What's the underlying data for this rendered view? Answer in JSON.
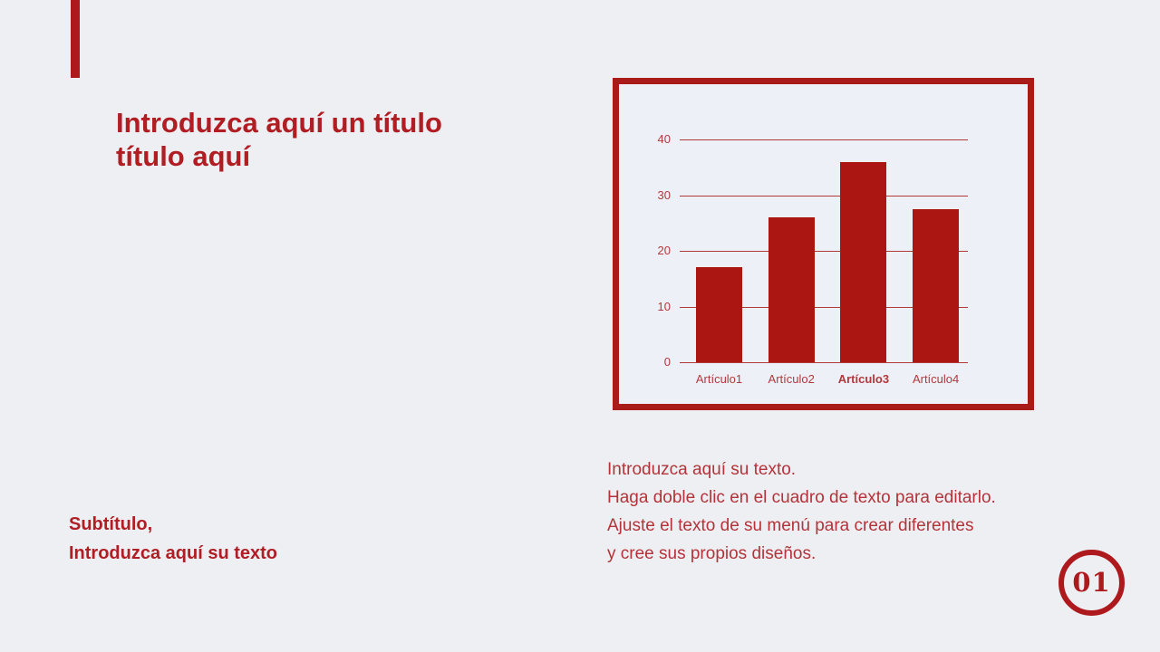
{
  "page": {
    "background": "#edeff2",
    "brand_red": "#ad191d",
    "body_text_red": "#b4333a",
    "chart_panel_background": "#eef0f7"
  },
  "header": {
    "title_line1": "Introduzca aquí un título",
    "title_line2": "título aquí"
  },
  "subtitle": {
    "line1": "Subtítulo,",
    "line2": "Introduzca aquí su texto"
  },
  "body_text": {
    "lines": [
      "Introduzca aquí su texto.",
      "Haga doble clic en el cuadro de texto para editarlo.",
      "Ajuste el texto de su menú para crear diferentes",
      "y cree sus propios diseños."
    ]
  },
  "page_number": {
    "label": "01"
  },
  "chart_data": {
    "type": "bar",
    "categories": [
      "Artículo1",
      "Artículo2",
      "Artículo3",
      "Artículo4"
    ],
    "values": [
      17,
      26,
      36,
      27.5
    ],
    "emphasized_category_index": 2,
    "title": "",
    "xlabel": "",
    "ylabel": "",
    "ylim": [
      0,
      40
    ],
    "yticks": [
      0,
      10,
      20,
      30,
      40
    ],
    "grid": true,
    "legend": "none",
    "bar_color": "#ab1512",
    "grid_color": "#b2383c",
    "tick_label_color": "#b2383c",
    "frame_color": "#a81b18"
  }
}
